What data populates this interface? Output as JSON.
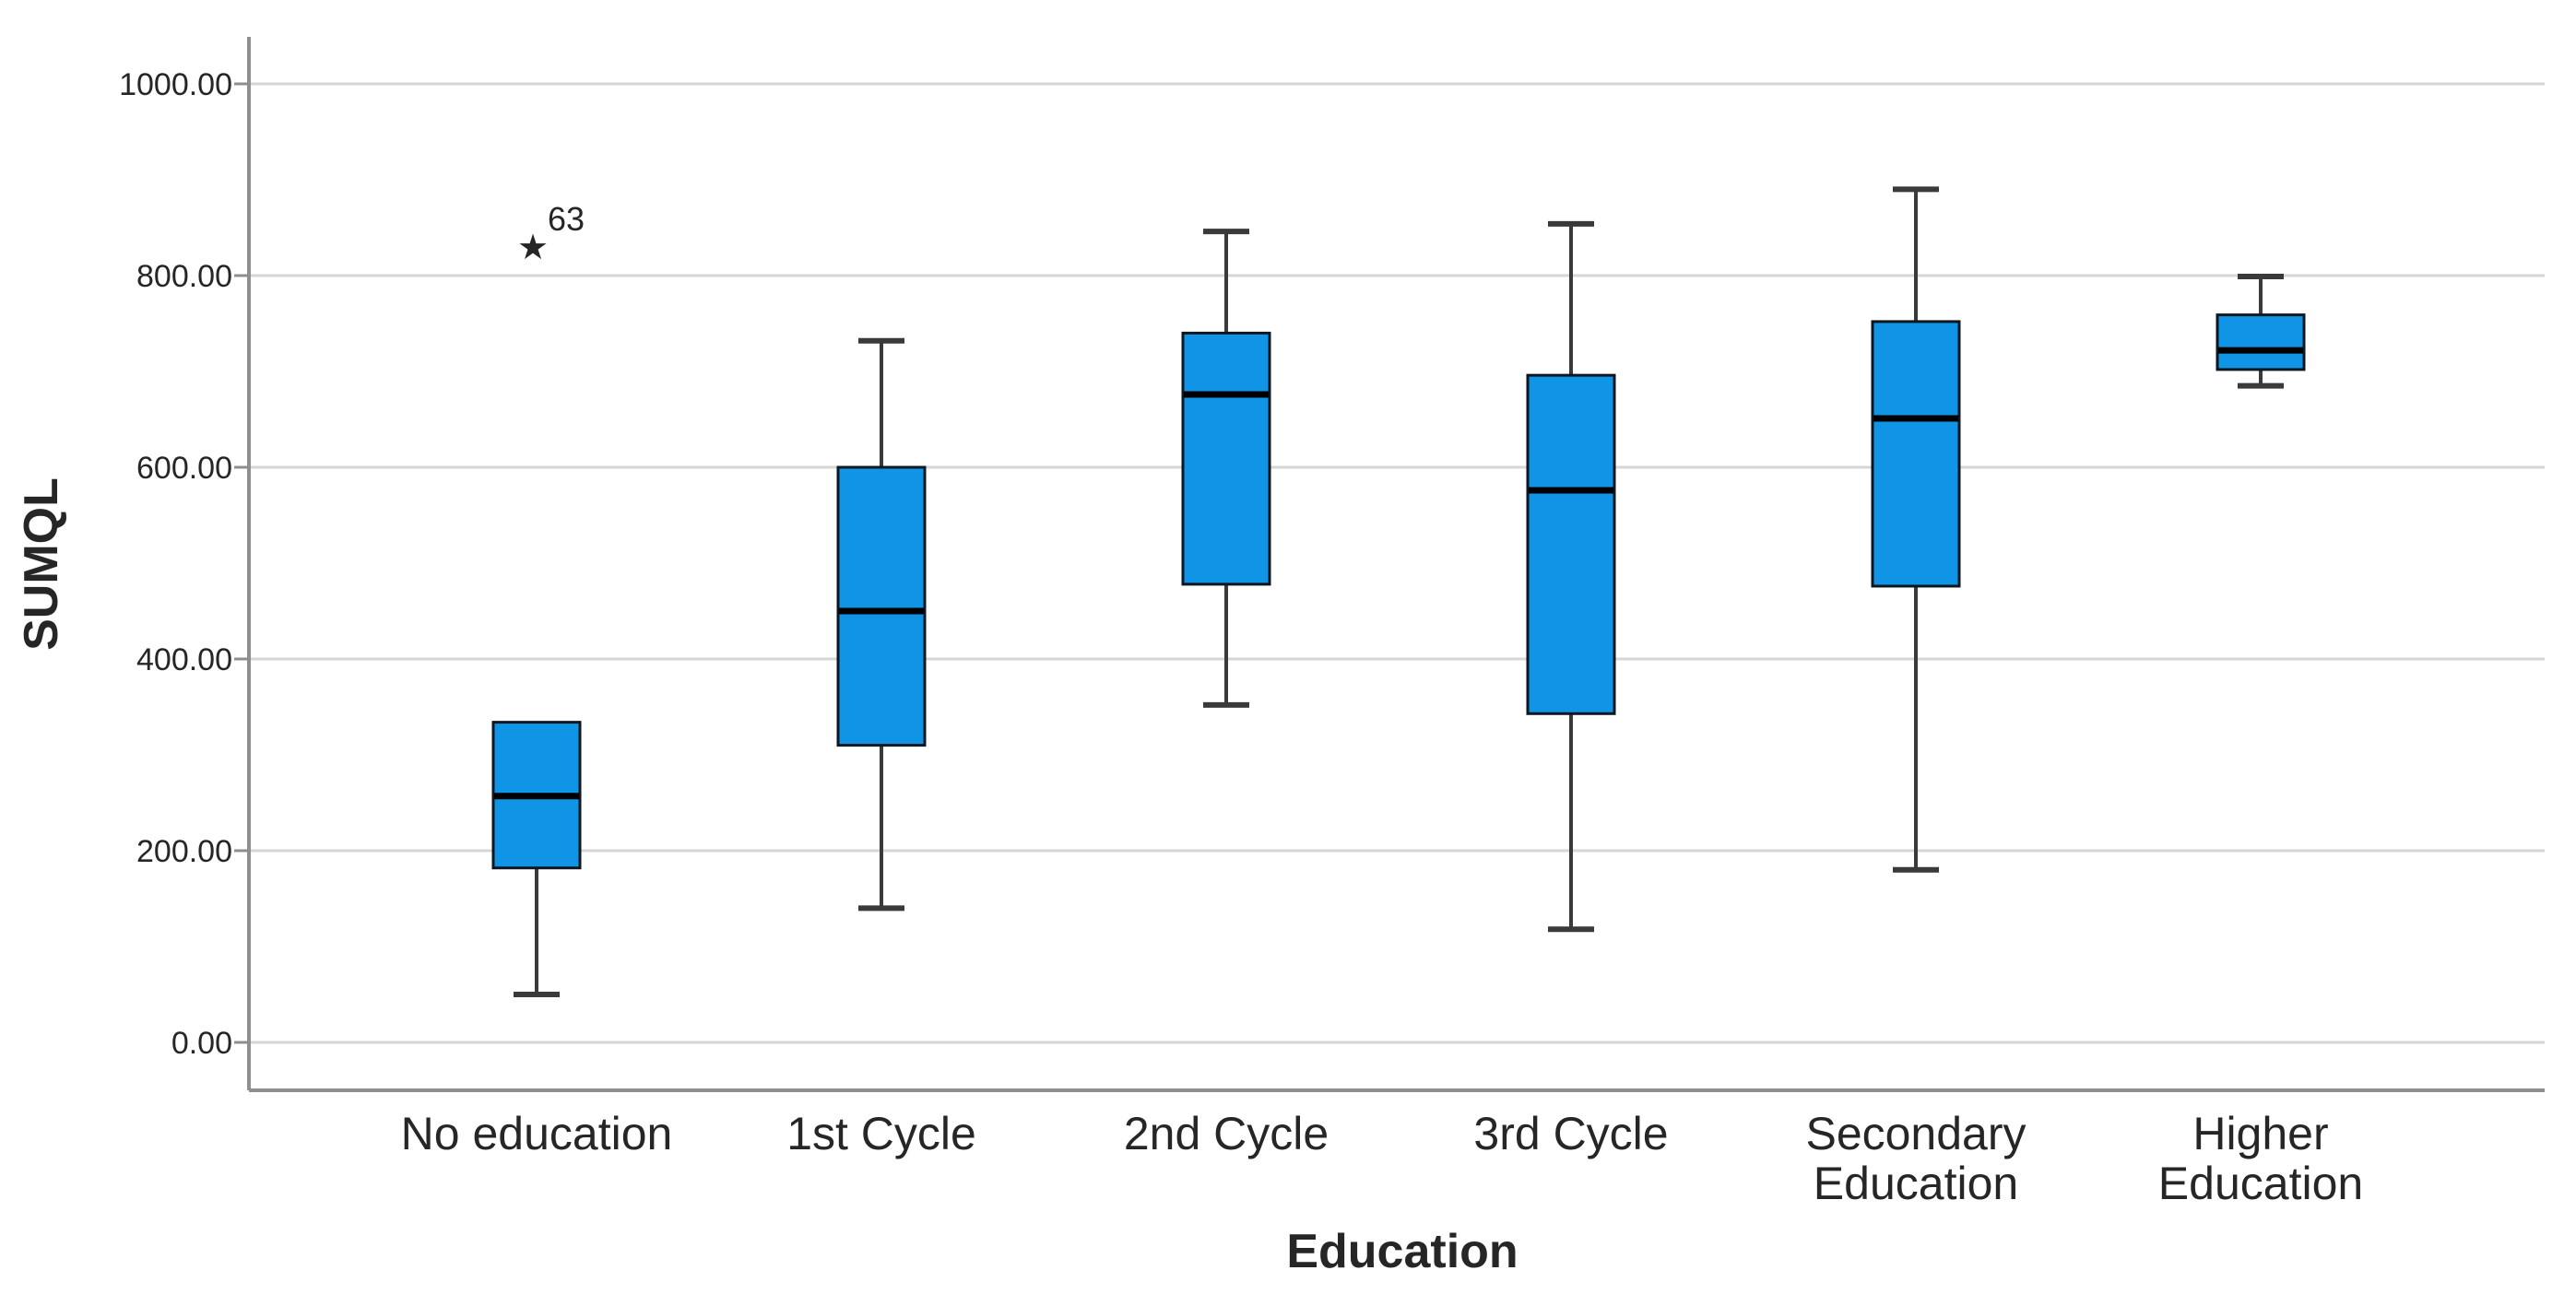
{
  "chart_data": {
    "type": "boxplot",
    "title": "",
    "xlabel": "Education",
    "ylabel": "SUMQL",
    "ylim": [
      -55,
      1055
    ],
    "yticks": [
      0,
      200,
      400,
      600,
      800,
      1000
    ],
    "ytick_labels": [
      "0.00",
      "200.00",
      "400.00",
      "600.00",
      "800.00",
      "1000.00"
    ],
    "grid": "horizontal gridlines at each y tick",
    "legend": "none",
    "outlier_marker": "★",
    "categories": [
      "No education",
      "1st Cycle",
      "2nd Cycle",
      "3rd Cycle",
      "Secondary Education",
      "Higher Education"
    ],
    "category_label_lines": [
      [
        "No education"
      ],
      [
        "1st Cycle"
      ],
      [
        "2nd Cycle"
      ],
      [
        "3rd Cycle"
      ],
      [
        "Secondary",
        "Education"
      ],
      [
        "Higher",
        "Education"
      ]
    ],
    "series": [
      {
        "category": "No education",
        "whisker_low": 50,
        "q1": 182,
        "median": 257,
        "q3": 334,
        "whisker_high": 334,
        "outliers": [
          {
            "value": 830,
            "label": "63"
          }
        ]
      },
      {
        "category": "1st Cycle",
        "whisker_low": 140,
        "q1": 310,
        "median": 450,
        "q3": 600,
        "whisker_high": 732,
        "outliers": []
      },
      {
        "category": "2nd Cycle",
        "whisker_low": 352,
        "q1": 478,
        "median": 676,
        "q3": 740,
        "whisker_high": 846,
        "outliers": []
      },
      {
        "category": "3rd Cycle",
        "whisker_low": 118,
        "q1": 343,
        "median": 576,
        "q3": 696,
        "whisker_high": 854,
        "outliers": []
      },
      {
        "category": "Secondary Education",
        "whisker_low": 180,
        "q1": 476,
        "median": 651,
        "q3": 752,
        "whisker_high": 890,
        "outliers": []
      },
      {
        "category": "Higher Education",
        "whisker_low": 685,
        "q1": 702,
        "median": 722,
        "q3": 759,
        "whisker_high": 799,
        "outliers": []
      }
    ]
  },
  "colors": {
    "box_fill": "#1095E6",
    "box_border": "#0E1720",
    "median_line": "#000000",
    "whisker": "#3A3A3A",
    "gridline": "#D6D6D6",
    "axis_line": "#8F8F8F",
    "text": "#262626",
    "background": "#FFFFFF"
  }
}
